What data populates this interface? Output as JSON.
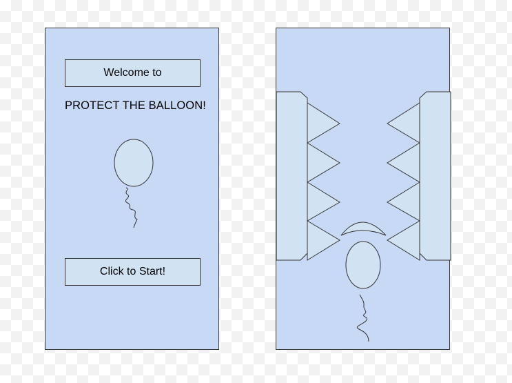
{
  "colors": {
    "screen_fill": "#c8d9f6",
    "element_fill": "#d1e2f3",
    "stroke": "#333333"
  },
  "start_screen": {
    "welcome_label": "Welcome to",
    "title": "PROTECT THE BALLOON!",
    "start_button_label": "Click to Start!"
  }
}
